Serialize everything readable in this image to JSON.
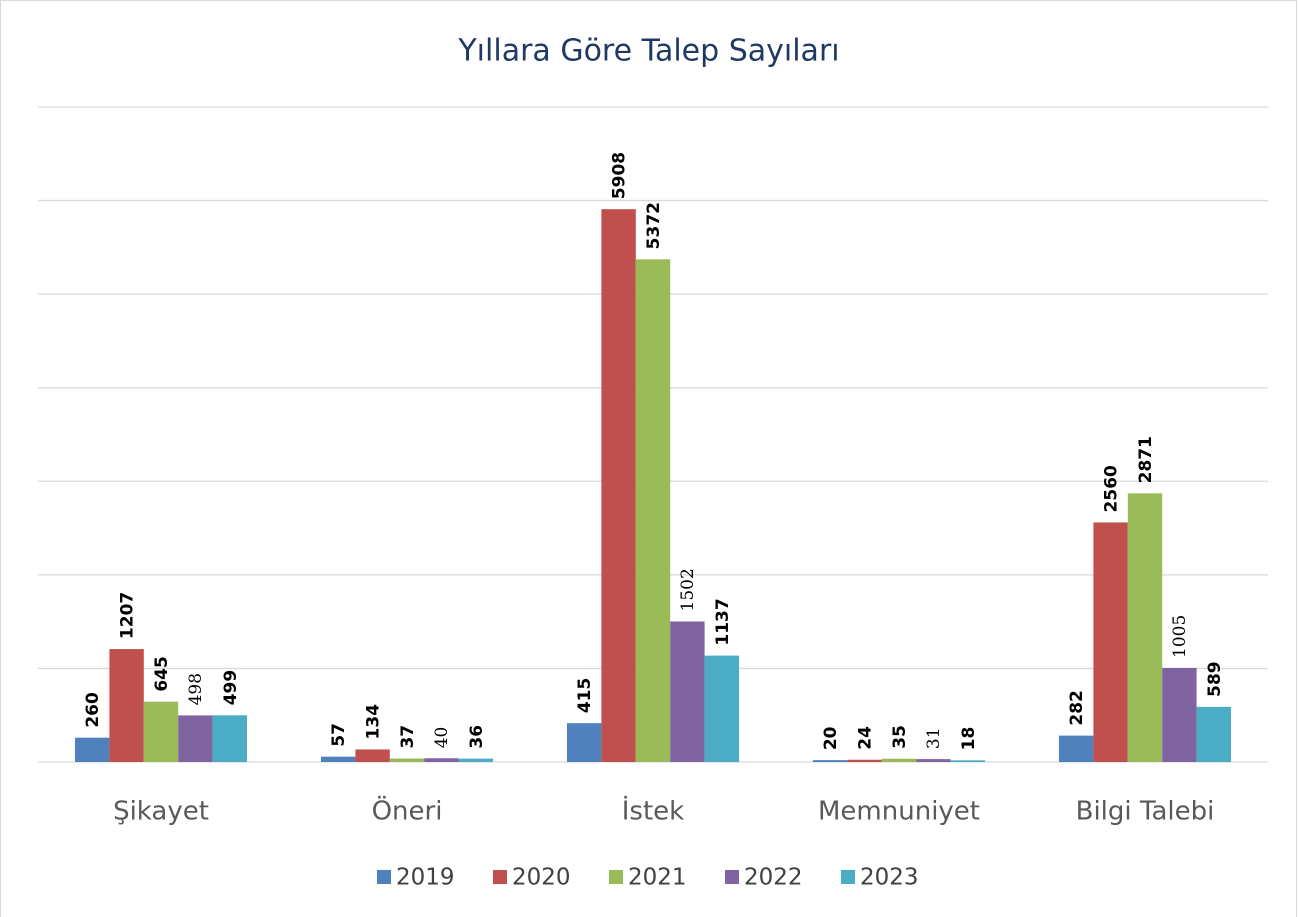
{
  "chart_data": {
    "type": "bar",
    "title": "Yıllara Göre Talep Sayıları",
    "categories": [
      "Şikayet",
      "Öneri",
      "İstek",
      "Memnuniyet",
      "Bilgi Talebi"
    ],
    "series": [
      {
        "name": "2019",
        "color": "#4f81bd",
        "values": [
          260,
          57,
          415,
          20,
          282
        ]
      },
      {
        "name": "2020",
        "color": "#c0504d",
        "values": [
          1207,
          134,
          5908,
          24,
          2560
        ]
      },
      {
        "name": "2021",
        "color": "#9bbb59",
        "values": [
          645,
          37,
          5372,
          35,
          2871
        ]
      },
      {
        "name": "2022",
        "color": "#8064a2",
        "values": [
          498,
          40,
          1502,
          31,
          1005
        ]
      },
      {
        "name": "2023",
        "color": "#4bacc6",
        "values": [
          499,
          36,
          1137,
          18,
          589
        ]
      }
    ],
    "ylim": [
      0,
      7000
    ],
    "yticks": [
      0,
      1000,
      2000,
      3000,
      4000,
      5000,
      6000,
      7000
    ],
    "grid": true,
    "legend": "bottom"
  }
}
